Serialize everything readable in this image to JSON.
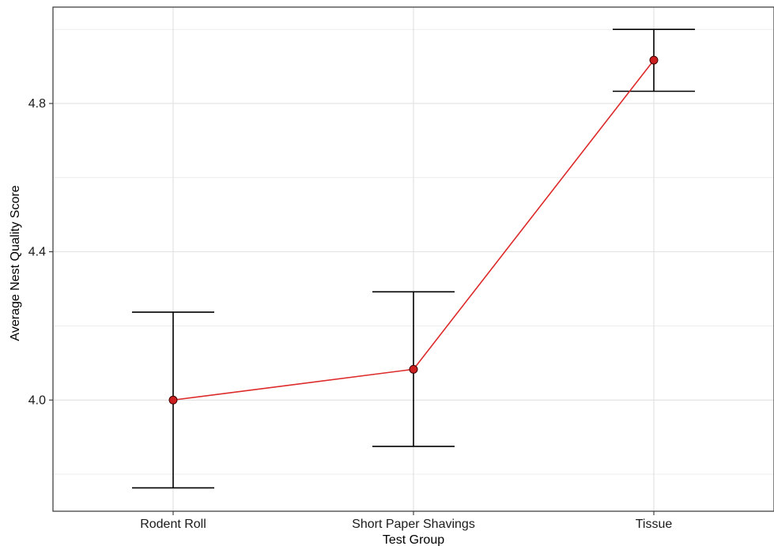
{
  "chart_data": {
    "type": "line",
    "xlabel": "Test Group",
    "ylabel": "Average Nest Quality Score",
    "categories": [
      "Rodent Roll",
      "Short Paper Shavings",
      "Tissue"
    ],
    "series": [
      {
        "values": [
          4.0,
          4.083,
          4.917
        ],
        "error_low": [
          3.763,
          3.875,
          4.833
        ],
        "error_high": [
          4.237,
          4.292,
          5.0
        ],
        "color": "#cc2222"
      }
    ],
    "yticks": [
      4.0,
      4.4,
      4.8
    ],
    "ytick_labels": [
      "4.0",
      "4.4",
      "4.8"
    ],
    "ylim": [
      3.7,
      5.06
    ],
    "grid": true,
    "legend": "none",
    "colors": {
      "line": "#dd2a2a",
      "point_fill": "#cc1f1f",
      "point_stroke": "#3a0000",
      "errorbar": "#000000",
      "grid": "#e0e0e0",
      "panel_border": "#333333"
    }
  }
}
